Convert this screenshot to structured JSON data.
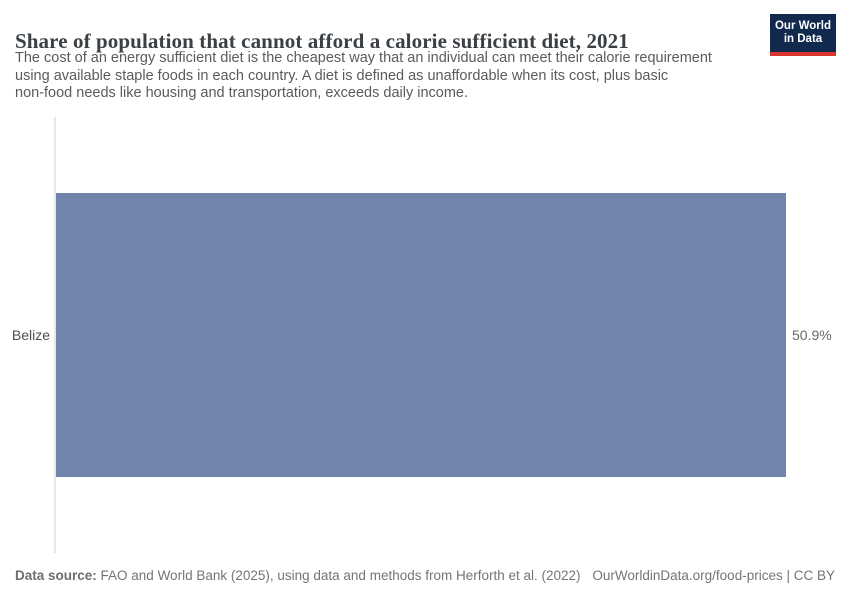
{
  "header": {
    "title": "Share of population that cannot afford a calorie sufficient diet, 2021",
    "subtitle_lines": [
      "The cost of an energy sufficient diet is the cheapest way that an individual can meet their calorie requirement",
      "using available staple foods in each country. A diet is defined as unaffordable when its cost, plus basic",
      "non-food needs like housing and transportation, exceeds daily income."
    ]
  },
  "logo": {
    "line1": "Our World",
    "line2": "in Data",
    "background_color": "#12294e",
    "accent_color": "#d8352f"
  },
  "chart_data": {
    "type": "bar",
    "orientation": "horizontal",
    "title": "Share of population that cannot afford a calorie sufficient diet, 2021",
    "year": "2021",
    "categories": [
      "Belize"
    ],
    "values": [
      50.9
    ],
    "value_labels": [
      "50.9%"
    ],
    "xlabel": "",
    "ylabel": "",
    "xlim": [
      0,
      50.9
    ],
    "grid": false,
    "legend": false,
    "bar_color": "#7185ac"
  },
  "footer": {
    "source_label": "Data source:",
    "source_text": " FAO and World Bank (2025), using data and methods from Herforth et al. (2022)",
    "link_text": "OurWorldinData.org/food-prices",
    "separator": " | ",
    "license_text": "CC BY"
  }
}
